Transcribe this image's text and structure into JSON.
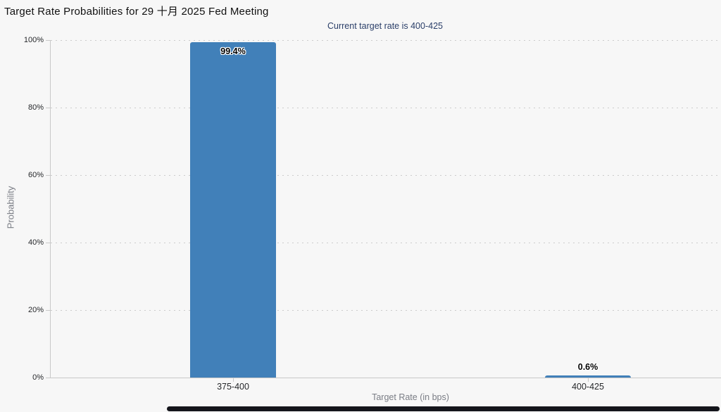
{
  "chart_data": {
    "type": "bar",
    "title": "Target Rate Probabilities for 29 十月 2025 Fed Meeting",
    "subtitle": "Current target rate is 400-425",
    "categories": [
      "375-400",
      "400-425"
    ],
    "values": [
      99.4,
      0.6
    ],
    "value_labels": [
      "99.4%",
      "0.6%"
    ],
    "xlabel": "Target Rate (in bps)",
    "ylabel": "Probability",
    "ylim": [
      0,
      100
    ],
    "yticks": [
      {
        "value": 0,
        "label": "0%"
      },
      {
        "value": 20,
        "label": "20%"
      },
      {
        "value": 40,
        "label": "40%"
      },
      {
        "value": 60,
        "label": "60%"
      },
      {
        "value": 80,
        "label": "80%"
      },
      {
        "value": 100,
        "label": "100%"
      }
    ],
    "grid": "horizontal-dotted",
    "legend_position": "none",
    "colors": {
      "background": "#f7f7f7",
      "bar": "#4180b9",
      "title": "#111111",
      "subtitle": "#2b3f69",
      "tick_label": "#26282b",
      "axis_title": "#7a7d85",
      "gridline": "#cccccc",
      "axis_line": "#c9c9c9",
      "value_label": "#000000",
      "scrollbar": "#14151b"
    }
  },
  "ui": {
    "horizontal_scrollbar": true
  }
}
